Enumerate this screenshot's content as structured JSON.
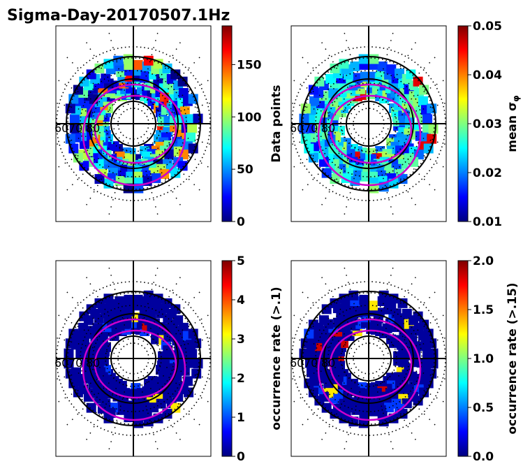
{
  "title": "Sigma-Day-20170507.1Hz",
  "colormap": [
    "#00007f",
    "#0000ff",
    "#007fff",
    "#00ffff",
    "#7fff7f",
    "#ffff00",
    "#ff7f00",
    "#ff0000",
    "#7f0000"
  ],
  "colors": {
    "oval": "#cc00cc",
    "grid": "#000000",
    "background": "#ffffff"
  },
  "lat_labels": [
    "60",
    "70",
    "80"
  ],
  "chart_data": [
    {
      "type": "heatmap",
      "projection": "polar",
      "colorbar_label": "Data points",
      "clim": [
        0,
        187
      ],
      "ticks": [
        {
          "value": 0,
          "label": "0"
        },
        {
          "value": 50,
          "label": "50"
        },
        {
          "value": 100,
          "label": "100"
        },
        {
          "value": 150,
          "label": "150"
        }
      ],
      "lat_labels": [
        "60",
        "70",
        "80"
      ],
      "grid": true,
      "oval": true,
      "pattern": "mixed"
    },
    {
      "type": "heatmap",
      "projection": "polar",
      "colorbar_label": "mean σ",
      "colorbar_label_sub": "φ",
      "clim": [
        0.01,
        0.05
      ],
      "ticks": [
        {
          "value": 0.01,
          "label": "0.01"
        },
        {
          "value": 0.02,
          "label": "0.02"
        },
        {
          "value": 0.03,
          "label": "0.03"
        },
        {
          "value": 0.04,
          "label": "0.04"
        },
        {
          "value": 0.05,
          "label": "0.05"
        }
      ],
      "lat_labels": [
        "60",
        "70",
        "80"
      ],
      "grid": true,
      "oval": true,
      "pattern": "sigma"
    },
    {
      "type": "heatmap",
      "projection": "polar",
      "colorbar_label": "occurrence rate (>.1)",
      "clim": [
        0,
        5
      ],
      "ticks": [
        {
          "value": 0,
          "label": "0"
        },
        {
          "value": 1,
          "label": "1"
        },
        {
          "value": 2,
          "label": "2"
        },
        {
          "value": 3,
          "label": "3"
        },
        {
          "value": 4,
          "label": "4"
        },
        {
          "value": 5,
          "label": "5"
        }
      ],
      "lat_labels": [
        "60",
        "70",
        "80"
      ],
      "grid": true,
      "oval": true,
      "pattern": "rate"
    },
    {
      "type": "heatmap",
      "projection": "polar",
      "colorbar_label": "occurrence rate (>.15)",
      "clim": [
        0,
        2
      ],
      "ticks": [
        {
          "value": 0,
          "label": "0.0"
        },
        {
          "value": 0.5,
          "label": "0.5"
        },
        {
          "value": 1,
          "label": "1.0"
        },
        {
          "value": 1.5,
          "label": "1.5"
        },
        {
          "value": 2,
          "label": "2.0"
        }
      ],
      "lat_labels": [
        "60",
        "70",
        "80"
      ],
      "grid": true,
      "oval": true,
      "pattern": "rate"
    }
  ]
}
